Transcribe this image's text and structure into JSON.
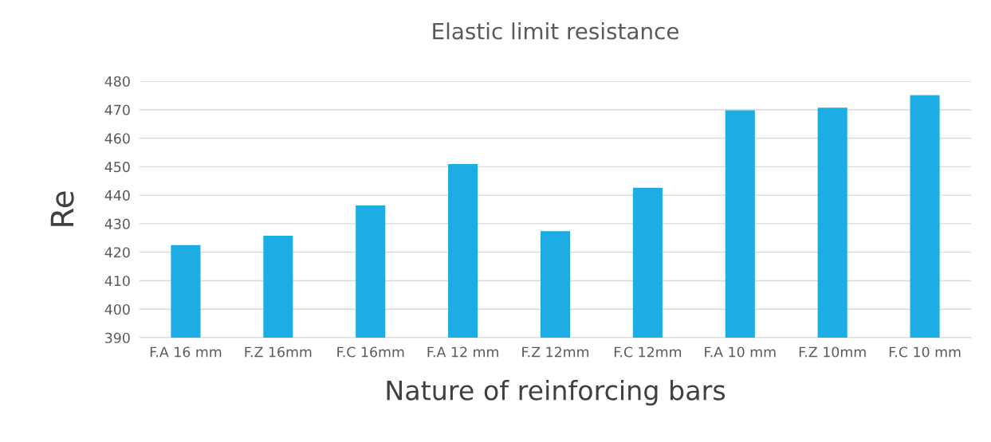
{
  "chart_data": {
    "type": "bar",
    "title": "Elastic limit resistance",
    "xlabel": "Nature of reinforcing bars",
    "ylabel": "Re",
    "categories": [
      "F.A 16 mm",
      "F.Z 16mm",
      "F.C 16mm",
      "F.A 12 mm",
      "F.Z 12mm",
      "F.C 12mm",
      "F.A 10 mm",
      "F.Z 10mm",
      "F.C 10 mm"
    ],
    "values": [
      422.5,
      425.8,
      436.4,
      450.9,
      427.4,
      442.6,
      469.8,
      470.7,
      475.1
    ],
    "color": "#1dace4",
    "ylim": [
      390,
      480
    ],
    "yticks": [
      390,
      400,
      410,
      420,
      430,
      440,
      450,
      460,
      470,
      480
    ],
    "grid": "y"
  }
}
